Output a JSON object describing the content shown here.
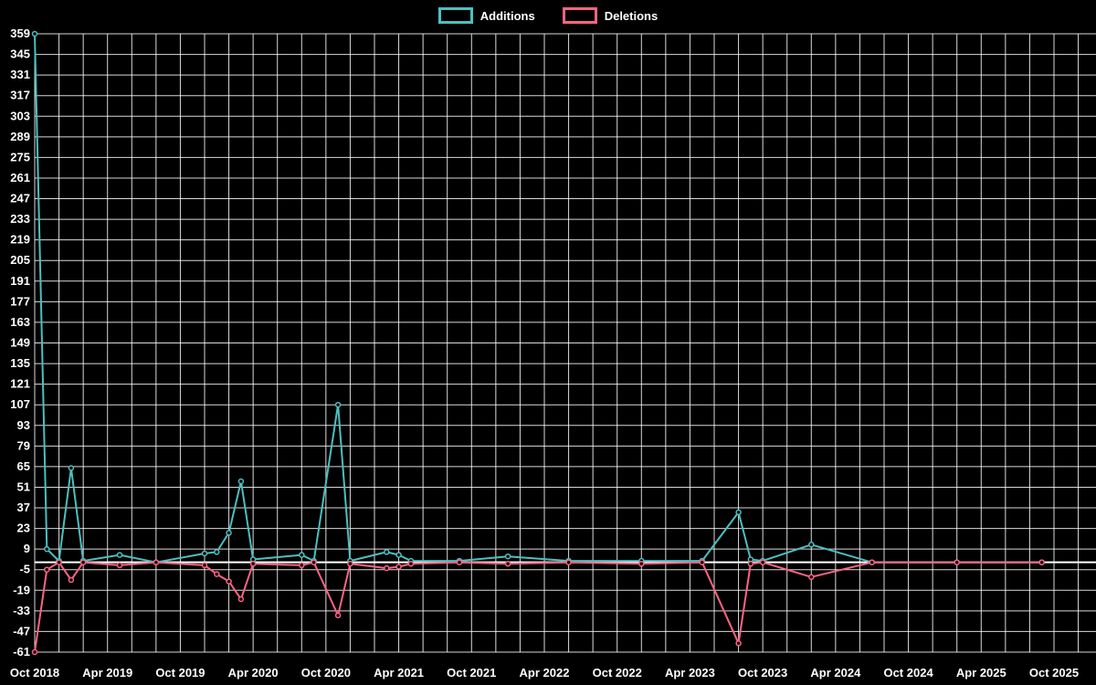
{
  "legend": {
    "additions_label": "Additions",
    "deletions_label": "Deletions"
  },
  "colors": {
    "additions": "#4bc0c0",
    "deletions": "#ff6384",
    "background": "#000000",
    "grid": "rgba(255,255,255,0.85)",
    "zero_line": "#ffffff",
    "text": "#ffffff"
  },
  "chart_data": {
    "type": "line",
    "title": "",
    "xlabel": "",
    "ylabel": "",
    "x_unit": "month",
    "x_start": "Oct 2018",
    "x_end": "Oct 2025",
    "months_total": 84,
    "x_tick_labels": [
      "Oct 2018",
      "Apr 2019",
      "Oct 2019",
      "Apr 2020",
      "Oct 2020",
      "Apr 2021",
      "Oct 2021",
      "Apr 2022",
      "Oct 2022",
      "Apr 2023",
      "Oct 2023",
      "Apr 2024",
      "Oct 2024",
      "Apr 2025",
      "Oct 2025"
    ],
    "x_tick_month_step": 6,
    "grid_month_step": 2,
    "ylim": [
      -61,
      359
    ],
    "y_tick_step": 14,
    "y_ticks": [
      359,
      345,
      331,
      317,
      303,
      289,
      275,
      261,
      247,
      233,
      219,
      205,
      191,
      177,
      163,
      149,
      135,
      121,
      107,
      93,
      79,
      65,
      51,
      37,
      23,
      9,
      -5,
      -19,
      -33,
      -47,
      -61
    ],
    "legend_position": "top",
    "grid": true,
    "series": [
      {
        "name": "Additions",
        "color": "#4bc0c0",
        "points": [
          {
            "m": 0,
            "v": 359
          },
          {
            "m": 1,
            "v": 9
          },
          {
            "m": 2,
            "v": 1
          },
          {
            "m": 3,
            "v": 64
          },
          {
            "m": 4,
            "v": 1
          },
          {
            "m": 7,
            "v": 5
          },
          {
            "m": 10,
            "v": 0
          },
          {
            "m": 14,
            "v": 6
          },
          {
            "m": 15,
            "v": 7
          },
          {
            "m": 16,
            "v": 20
          },
          {
            "m": 17,
            "v": 55
          },
          {
            "m": 18,
            "v": 2
          },
          {
            "m": 22,
            "v": 5
          },
          {
            "m": 23,
            "v": 1
          },
          {
            "m": 25,
            "v": 107
          },
          {
            "m": 26,
            "v": 1
          },
          {
            "m": 29,
            "v": 7
          },
          {
            "m": 30,
            "v": 5
          },
          {
            "m": 31,
            "v": 1
          },
          {
            "m": 35,
            "v": 1
          },
          {
            "m": 39,
            "v": 4
          },
          {
            "m": 44,
            "v": 1
          },
          {
            "m": 50,
            "v": 1
          },
          {
            "m": 55,
            "v": 1
          },
          {
            "m": 58,
            "v": 34
          },
          {
            "m": 59,
            "v": 2
          },
          {
            "m": 60,
            "v": 1
          },
          {
            "m": 64,
            "v": 12
          },
          {
            "m": 69,
            "v": 0
          },
          {
            "m": 76,
            "v": 0
          },
          {
            "m": 83,
            "v": 0
          }
        ]
      },
      {
        "name": "Deletions",
        "color": "#ff6384",
        "points": [
          {
            "m": 0,
            "v": -61
          },
          {
            "m": 1,
            "v": -5
          },
          {
            "m": 2,
            "v": 0
          },
          {
            "m": 3,
            "v": -12
          },
          {
            "m": 4,
            "v": 0
          },
          {
            "m": 7,
            "v": -2
          },
          {
            "m": 10,
            "v": 0
          },
          {
            "m": 14,
            "v": -2
          },
          {
            "m": 15,
            "v": -8
          },
          {
            "m": 16,
            "v": -13
          },
          {
            "m": 17,
            "v": -25
          },
          {
            "m": 18,
            "v": -1
          },
          {
            "m": 22,
            "v": -2
          },
          {
            "m": 23,
            "v": 0
          },
          {
            "m": 25,
            "v": -36
          },
          {
            "m": 26,
            "v": -1
          },
          {
            "m": 29,
            "v": -4
          },
          {
            "m": 30,
            "v": -3
          },
          {
            "m": 31,
            "v": -1
          },
          {
            "m": 35,
            "v": 0
          },
          {
            "m": 39,
            "v": -1
          },
          {
            "m": 44,
            "v": 0
          },
          {
            "m": 50,
            "v": -1
          },
          {
            "m": 55,
            "v": 0
          },
          {
            "m": 58,
            "v": -55
          },
          {
            "m": 59,
            "v": -1
          },
          {
            "m": 60,
            "v": 0
          },
          {
            "m": 64,
            "v": -10
          },
          {
            "m": 69,
            "v": 0
          },
          {
            "m": 76,
            "v": 0
          },
          {
            "m": 83,
            "v": 0
          }
        ]
      }
    ]
  }
}
